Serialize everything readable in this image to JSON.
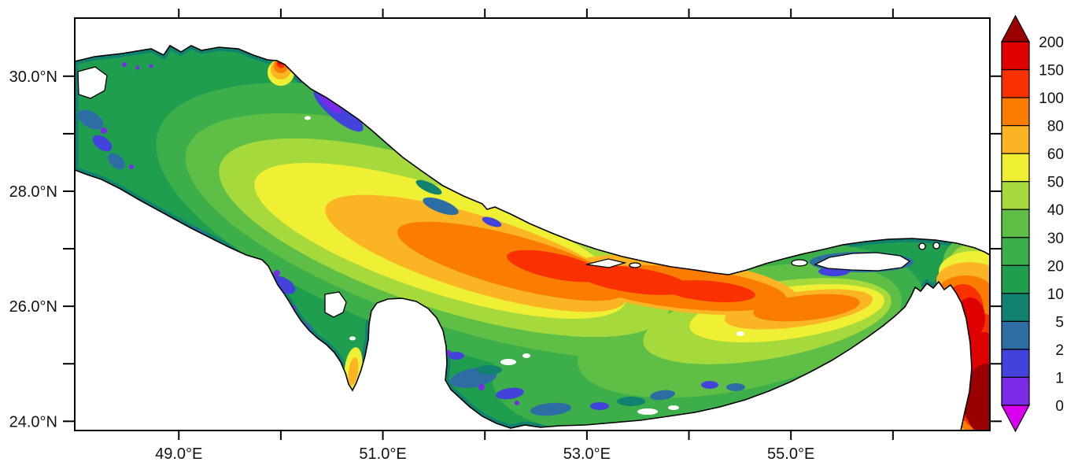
{
  "figure": {
    "title": "",
    "background_color": "#ffffff",
    "text_color": "#111111"
  },
  "chart_data": {
    "type": "heatmap",
    "description": "Filled-contour geographic map of the Persian Gulf and Strait of Hormuz / Gulf of Oman. Color shading gives the field value at each grid cell on a nonlinear scale 0-200 (e.g. depth in m). Land is white with a black coastline; scattered white cells inside the sea are no-data gaps.",
    "x_axis": {
      "range": [
        47.98,
        56.95
      ],
      "unit": "°E",
      "ticks": [
        {
          "value": 49,
          "label": "49.0°E"
        },
        {
          "value": 50,
          "label": ""
        },
        {
          "value": 51,
          "label": "51.0°E"
        },
        {
          "value": 52,
          "label": ""
        },
        {
          "value": 53,
          "label": "53.0°E"
        },
        {
          "value": 54,
          "label": ""
        },
        {
          "value": 55,
          "label": "55.0°E"
        },
        {
          "value": 56,
          "label": ""
        }
      ]
    },
    "y_axis": {
      "range": [
        23.84,
        31.01
      ],
      "unit": "°N",
      "ticks": [
        {
          "value": 30,
          "label": "30.0°N"
        },
        {
          "value": 29,
          "label": ""
        },
        {
          "value": 28,
          "label": "28.0°N"
        },
        {
          "value": 27,
          "label": ""
        },
        {
          "value": 26,
          "label": "26.0°N"
        },
        {
          "value": 25,
          "label": ""
        },
        {
          "value": 24,
          "label": "24.0°N"
        }
      ]
    },
    "colorbar": {
      "tick_labels_top_to_bottom": [
        "200",
        "150",
        "100",
        "80",
        "60",
        "50",
        "40",
        "30",
        "20",
        "10",
        "5",
        "2",
        "1",
        "0"
      ],
      "segment_colors_top_to_bottom": [
        "#DF0000",
        "#F93100",
        "#FA7D00",
        "#FBB423",
        "#EFEF33",
        "#A5D93C",
        "#5FBE46",
        "#3CAF4A",
        "#1F9E4F",
        "#128270",
        "#2E6DA4",
        "#4343DC",
        "#7B2BE8"
      ],
      "arrow_top_color": "#9B0000",
      "arrow_bottom_color": "#D900F0"
    },
    "palette": {
      "below_0": "#D900F0",
      "v0_1": "#7B2BE8",
      "v1_2": "#4343DC",
      "v2_5": "#2E6DA4",
      "v5_10": "#128270",
      "v10_20": "#1F9E4F",
      "v20_30": "#3CAF4A",
      "v30_40": "#5FBE46",
      "v40_50": "#A5D93C",
      "v50_60": "#EFEF33",
      "v60_80": "#FBB423",
      "v80_100": "#FA7D00",
      "v100_150": "#F93100",
      "v150_200": "#DF0000",
      "above_200": "#9B0000"
    },
    "regions_read_from_map": [
      {
        "area": "north-west head of gulf (Kuwait/Shatt al-Arab)",
        "value_range": "5-30 with 0-2 patches along shores"
      },
      {
        "area": "central basin axis (50.5-54.5E)",
        "value_range": "50-100 (yellow-orange band)"
      },
      {
        "area": "deep channel toward Iranian side (52-55E)",
        "value_range": "100-150"
      },
      {
        "area": "hot spot on north coast near 50.3E",
        "value_range": "100-200"
      },
      {
        "area": "Gulf of Salwa strip west of Qatar",
        "value_range": "50-80"
      },
      {
        "area": "southern shelf (Bahrain/Qatar/UAE coast)",
        "value_range": "0-20"
      },
      {
        "area": "Strait of Hormuz core",
        "value_range": "100-200"
      },
      {
        "area": "Gulf of Oman (south-east corner)",
        "value_range": "150 to >200"
      }
    ]
  }
}
